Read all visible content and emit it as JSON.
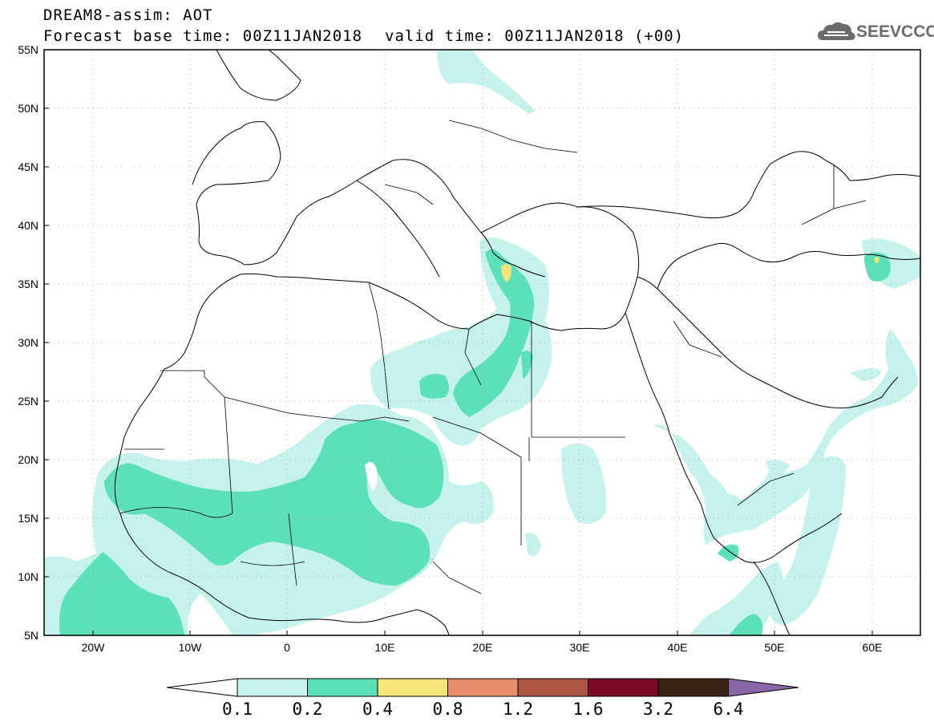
{
  "header": {
    "line1": "DREAM8-assim: AOT",
    "line2": "Forecast base time: 00Z11JAN2018",
    "valid": "valid time: 00Z11JAN2018 (+00)"
  },
  "logo": {
    "text": "SEEVCCC",
    "icon": "cloud-logo-icon"
  },
  "map": {
    "projection": "lat-lon",
    "lon_range": [
      -25,
      65
    ],
    "lat_range": [
      5,
      55
    ],
    "grid": "dotted",
    "lat_ticks": [
      "55N",
      "50N",
      "45N",
      "40N",
      "35N",
      "30N",
      "25N",
      "20N",
      "15N",
      "10N",
      "5N"
    ],
    "lon_ticks": [
      "20W",
      "10W",
      "0",
      "10E",
      "20E",
      "30E",
      "40E",
      "50E",
      "60E"
    ],
    "colors": {
      "land_line": "#000000",
      "frame": "#000000"
    }
  },
  "colorbar": {
    "labels": [
      "0.1",
      "0.2",
      "0.4",
      "0.8",
      "1.2",
      "1.6",
      "3.2",
      "6.4"
    ],
    "colors": [
      "#c6f2ec",
      "#5ce0b8",
      "#f5e67a",
      "#e78e6b",
      "#ae5444",
      "#7e0a2a",
      "#3b2415",
      "#8a66a6"
    ],
    "min_color": "#ffffff",
    "max_color": "#8a66a6"
  }
}
